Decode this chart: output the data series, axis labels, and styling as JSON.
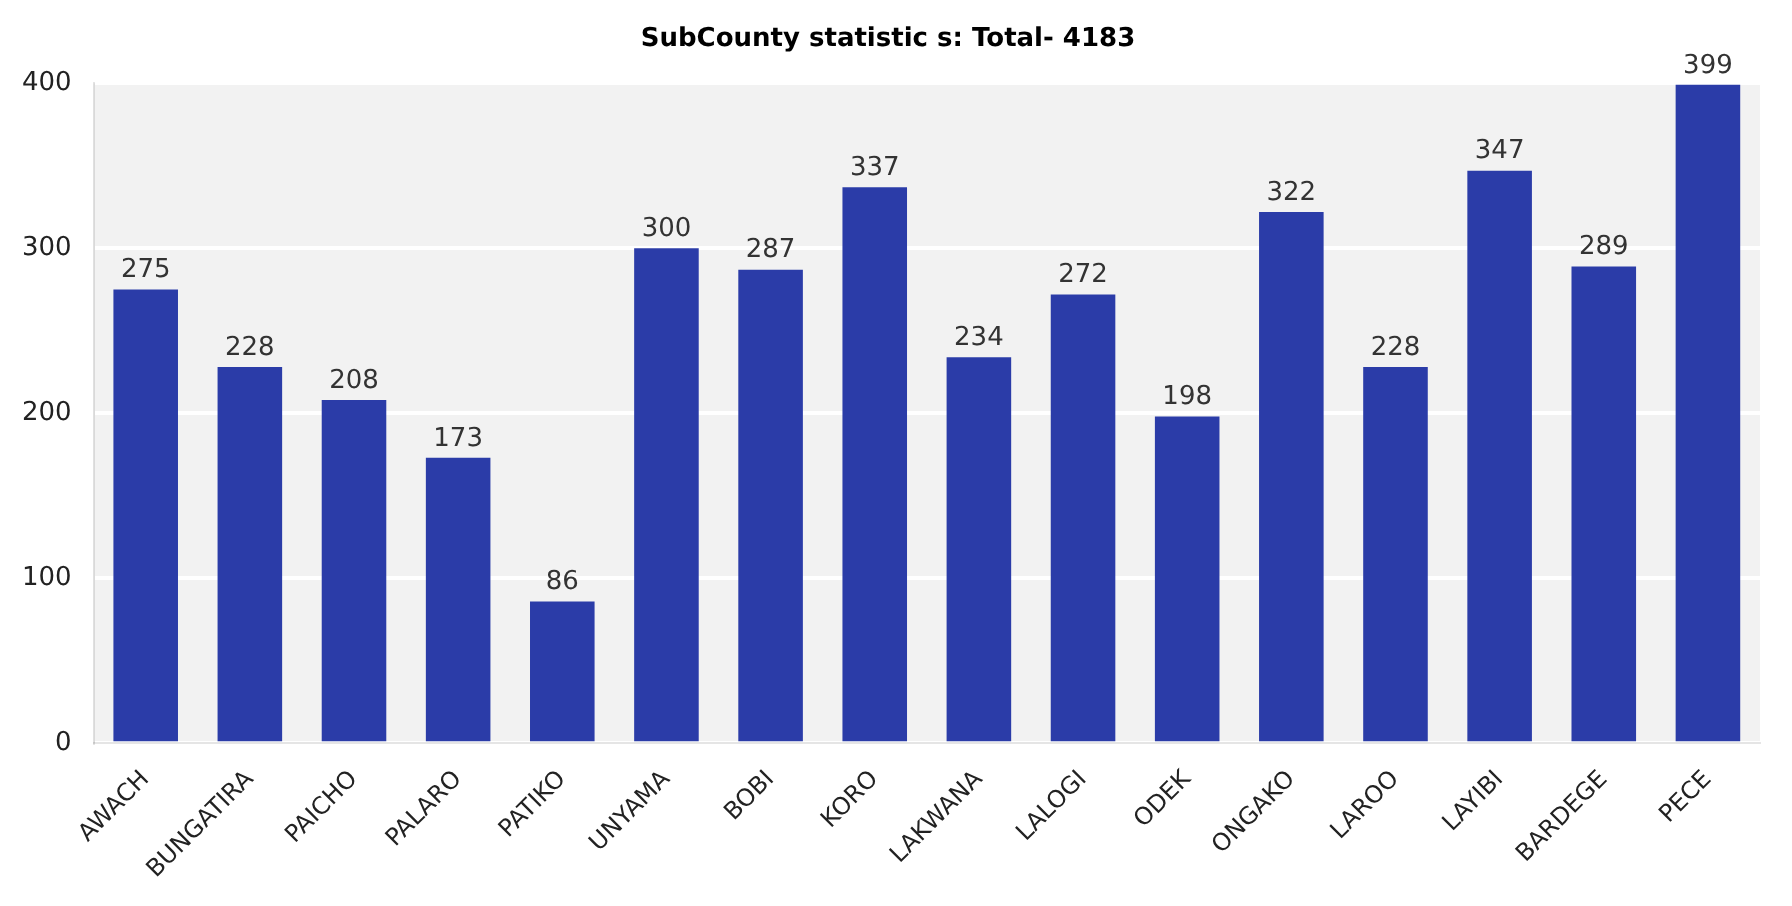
{
  "chart_data": {
    "type": "bar",
    "title": "SubCounty statistic s: Total- 4183",
    "categories": [
      "AWACH",
      "BUNGATIRA",
      "PAICHO",
      "PALARO",
      "PATIKO",
      "UNYAMA",
      "BOBI",
      "KORO",
      "LAKWANA",
      "LALOGI",
      "ODEK",
      "ONGAKO",
      "LAROO",
      "LAYIBI",
      "BARDEGE",
      "PECE"
    ],
    "values": [
      275,
      228,
      208,
      173,
      86,
      300,
      287,
      337,
      234,
      272,
      198,
      322,
      228,
      347,
      289,
      399
    ],
    "color": "#2b3ca8",
    "ylim": [
      0,
      400
    ],
    "yticks": [
      0,
      100,
      200,
      300,
      400
    ],
    "grid": "y",
    "data_labels": true
  }
}
